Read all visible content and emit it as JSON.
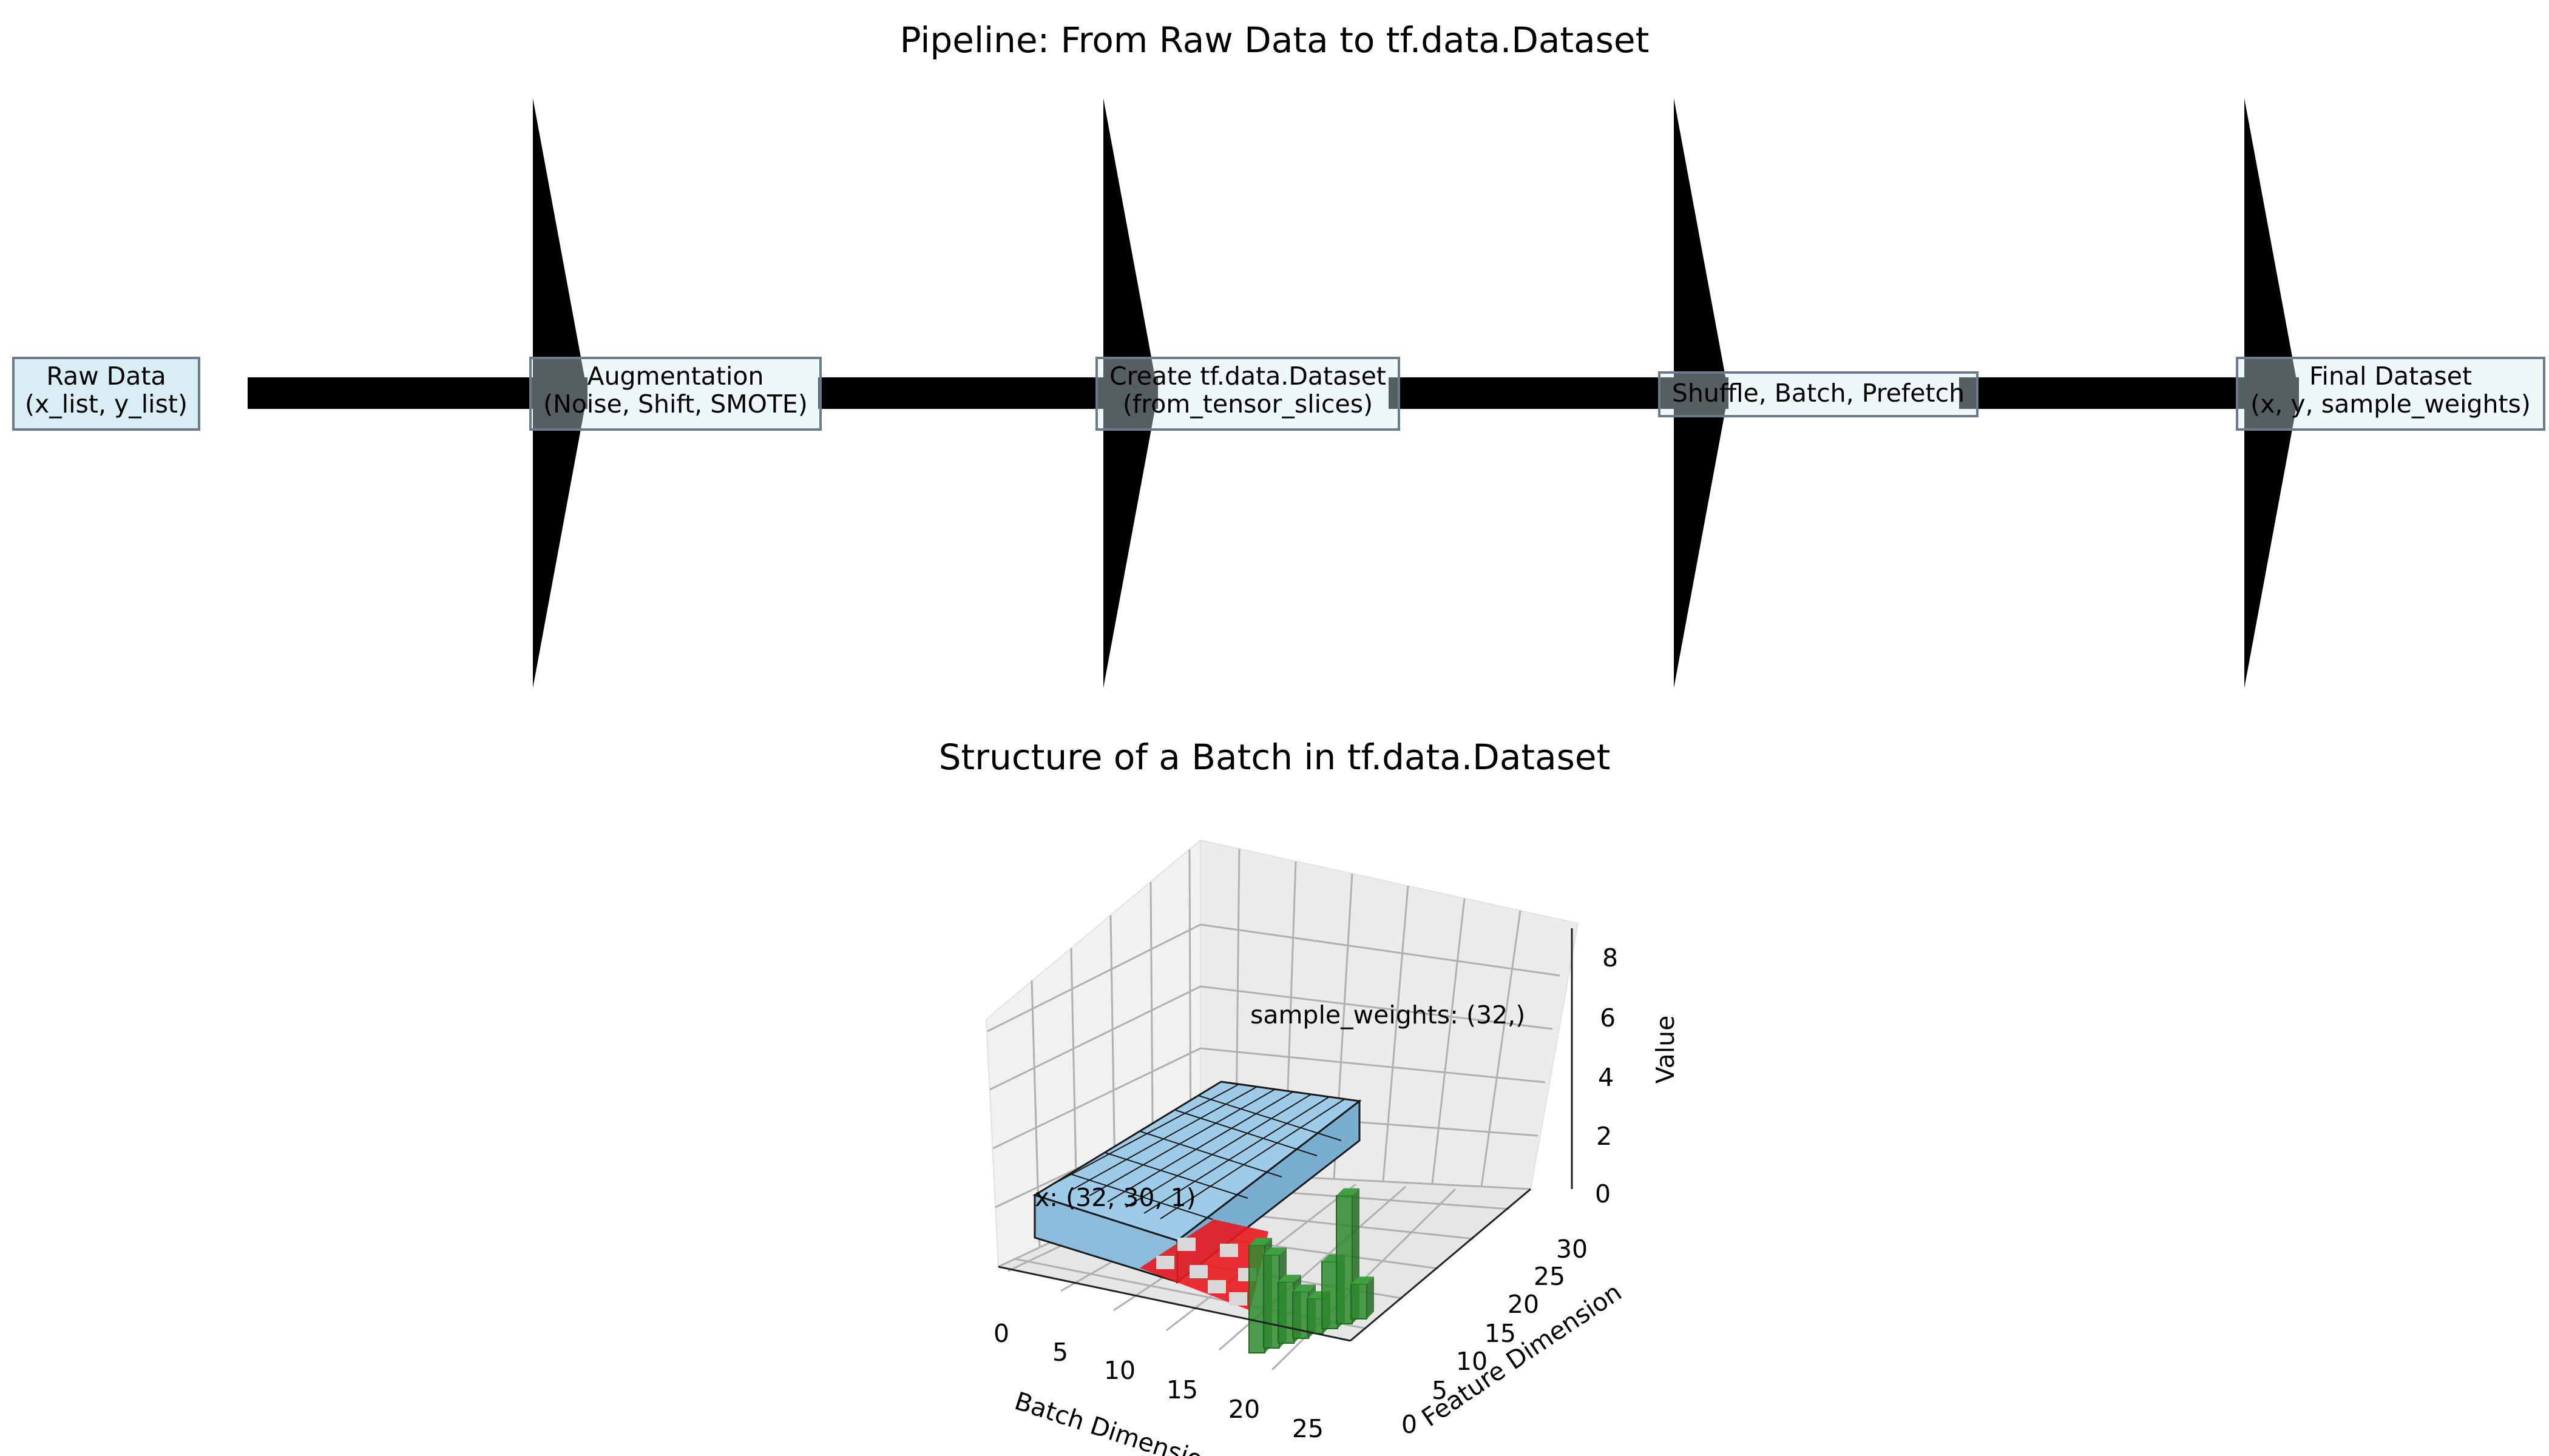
{
  "pipeline": {
    "title": "Pipeline: From Raw Data to tf.data.Dataset",
    "stages": [
      {
        "line1": "Raw Data",
        "line2": "(x_list, y_list)"
      },
      {
        "line1": "Augmentation",
        "line2": "(Noise, Shift, SMOTE)"
      },
      {
        "line1": "Create tf.data.Dataset",
        "line2": "(from_tensor_slices)"
      },
      {
        "line1": "Shuffle, Batch, Prefetch",
        "line2": ""
      },
      {
        "line1": "Final Dataset",
        "line2": "(x, y, sample_weights)"
      }
    ],
    "colors": {
      "box_fill": "#d4ecf2",
      "box_edge": "#6c7b8a",
      "arrow": "#000000"
    }
  },
  "batch": {
    "title": "Structure of a Batch in tf.data.Dataset",
    "xlabel": "Batch Dimension",
    "ylabel": "Feature Dimension",
    "zlabel": "Value",
    "x_ticks": [
      "0",
      "5",
      "10",
      "15",
      "20",
      "25"
    ],
    "y_ticks": [
      "0",
      "5",
      "10",
      "15",
      "20",
      "25",
      "30"
    ],
    "z_ticks": [
      "0",
      "2",
      "4",
      "6",
      "8"
    ],
    "annotations": {
      "x_label": "x: (32, 30, 1)",
      "weights_label": "sample_weights: (32,)"
    },
    "colors": {
      "x_block": "#9ecbe8",
      "y_red": "#e8191f",
      "y_light": "#d8d8d8",
      "weights": "#2e8b2e"
    }
  },
  "chart_data": {
    "type": "bar3d",
    "title": "Structure of a Batch in tf.data.Dataset",
    "xlabel": "Batch Dimension",
    "ylabel": "Feature Dimension",
    "zlabel": "Value",
    "xlim": [
      0,
      32
    ],
    "ylim": [
      0,
      32
    ],
    "zlim": [
      0,
      8
    ],
    "series": [
      {
        "name": "x: (32, 30, 1)",
        "shape": [
          32,
          30,
          1
        ]
      },
      {
        "name": "sample_weights: (32,)",
        "x": [
          20,
          21,
          22,
          23,
          24,
          25,
          26,
          27
        ],
        "values": [
          3.7,
          3.2,
          2.1,
          1.6,
          1.2,
          2.3,
          4.4,
          1.2
        ]
      }
    ]
  }
}
